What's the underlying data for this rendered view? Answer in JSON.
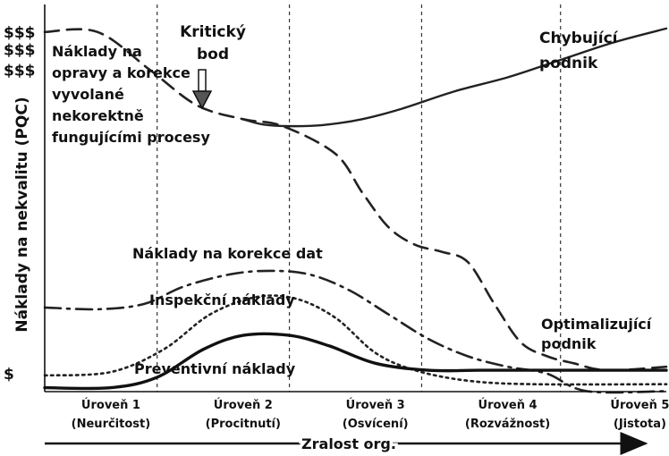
{
  "chart_data": {
    "type": "line",
    "title": "",
    "xlabel": "Zralost org.",
    "ylabel": "Náklady na nekvalitu (PQC)",
    "xlim": [
      0.5,
      5.2
    ],
    "ylim": [
      0,
      100
    ],
    "y_tick_labels": [
      {
        "y": 0,
        "label": "$"
      },
      {
        "y": 87,
        "label": "$$$"
      },
      {
        "y": 93,
        "label": "$$$"
      },
      {
        "y": 98,
        "label": "$$$"
      }
    ],
    "x_ticks": [
      {
        "x": 1,
        "label": "Úroveň 1",
        "sublabel": "(Neurčitost)"
      },
      {
        "x": 2,
        "label": "Úroveň 2",
        "sublabel": "(Procitnutí)"
      },
      {
        "x": 3,
        "label": "Úroveň 3",
        "sublabel": "(Osvícení)"
      },
      {
        "x": 4,
        "label": "Úroveň 4",
        "sublabel": "(Rozvážnost)"
      },
      {
        "x": 5,
        "label": "Úroveň 5",
        "sublabel": "(Jistota)"
      }
    ],
    "boundaries": [
      1.35,
      2.35,
      3.35,
      4.4
    ],
    "series": [
      {
        "style": "dashed",
        "color": "#222222",
        "points": [
          [
            0.5,
            98
          ],
          [
            0.9,
            98
          ],
          [
            1.3,
            87
          ],
          [
            1.65,
            77
          ],
          [
            2.0,
            73
          ],
          [
            2.3,
            71
          ],
          [
            2.7,
            63
          ],
          [
            2.9,
            52
          ],
          [
            3.1,
            42
          ],
          [
            3.3,
            37
          ],
          [
            3.5,
            35
          ],
          [
            3.7,
            32
          ],
          [
            3.9,
            20
          ],
          [
            4.1,
            9
          ],
          [
            4.3,
            5
          ],
          [
            4.5,
            3
          ],
          [
            4.75,
            1
          ],
          [
            5.2,
            2
          ]
        ]
      },
      {
        "style": "solid",
        "color": "#222222",
        "points": [
          [
            2.0,
            73
          ],
          [
            2.15,
            71.5
          ],
          [
            2.35,
            71
          ],
          [
            2.6,
            71.3
          ],
          [
            2.9,
            73
          ],
          [
            3.2,
            76
          ],
          [
            3.6,
            81
          ],
          [
            4.0,
            85
          ],
          [
            4.4,
            90
          ],
          [
            4.8,
            95
          ],
          [
            5.2,
            99
          ]
        ]
      },
      {
        "style": "dash-dot",
        "color": "#222222",
        "points": [
          [
            0.5,
            19
          ],
          [
            0.9,
            18.5
          ],
          [
            1.25,
            20
          ],
          [
            1.55,
            25
          ],
          [
            1.9,
            28.5
          ],
          [
            2.2,
            29.5
          ],
          [
            2.5,
            28.5
          ],
          [
            2.8,
            24
          ],
          [
            3.1,
            17
          ],
          [
            3.4,
            10
          ],
          [
            3.7,
            5
          ],
          [
            4.0,
            2
          ],
          [
            4.3,
            0
          ],
          [
            4.6,
            -5
          ],
          [
            5.2,
            -5
          ]
        ]
      },
      {
        "style": "dotted",
        "color": "#222222",
        "points": [
          [
            0.5,
            -0.5
          ],
          [
            1.0,
            0.5
          ],
          [
            1.4,
            7
          ],
          [
            1.75,
            17
          ],
          [
            2.1,
            22
          ],
          [
            2.4,
            21.5
          ],
          [
            2.7,
            16
          ],
          [
            3.0,
            6
          ],
          [
            3.3,
            1
          ],
          [
            3.7,
            -2
          ],
          [
            4.2,
            -3
          ],
          [
            5.2,
            -3
          ]
        ]
      },
      {
        "style": "solid-bold",
        "color": "#111111",
        "points": [
          [
            0.5,
            -4
          ],
          [
            1.0,
            -4
          ],
          [
            1.35,
            -1
          ],
          [
            1.7,
            7
          ],
          [
            2.0,
            11
          ],
          [
            2.35,
            11
          ],
          [
            2.65,
            8
          ],
          [
            3.0,
            3
          ],
          [
            3.4,
            1
          ],
          [
            3.8,
            1
          ],
          [
            4.4,
            1
          ],
          [
            5.2,
            1
          ]
        ]
      }
    ],
    "annotations": {
      "curve_label_1": "Náklady na opravy a korekce vyvolané nekorektně fungujícími procesy",
      "critical_point": "Kritický bod",
      "top_right": "Chybující podnik",
      "data_correction": "Náklady na korekce dat",
      "inspection": "Inspekční náklady",
      "prevention": "Preventivní náklady",
      "optimizing": "Optimalizující podnik"
    },
    "legend": "none",
    "grid": false
  }
}
